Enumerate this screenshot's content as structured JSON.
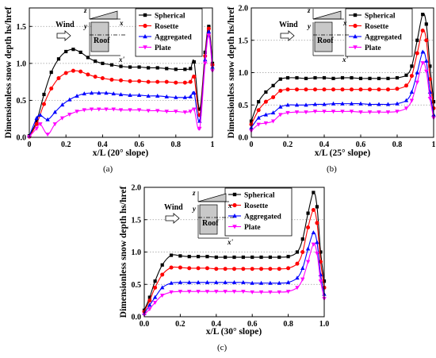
{
  "chart_data": [
    {
      "type": "line",
      "panel_label": "(a)",
      "xlabel": "x/L (20° slope)",
      "ylabel": "Dimensionless snow depth hs/href",
      "xlim": [
        0,
        1
      ],
      "ylim": [
        0,
        1.75
      ],
      "xticks": [
        "0",
        "0.2",
        "0.4",
        "0.6",
        "0.8",
        "1"
      ],
      "yticks": [
        "0.0",
        "0.5",
        "1.0",
        "1.5"
      ],
      "grid": "horizontal dotted at major y ticks",
      "legend_position": "top-right",
      "series": [
        {
          "name": "Spherical",
          "color": "#000000",
          "marker": "square",
          "x": [
            0.0,
            0.04,
            0.08,
            0.12,
            0.16,
            0.2,
            0.24,
            0.28,
            0.32,
            0.36,
            0.4,
            0.45,
            0.5,
            0.55,
            0.6,
            0.65,
            0.7,
            0.75,
            0.8,
            0.85,
            0.88,
            0.9,
            0.93,
            0.96,
            0.98,
            1.0
          ],
          "y": [
            0.02,
            0.22,
            0.58,
            0.88,
            1.06,
            1.16,
            1.19,
            1.15,
            1.08,
            1.03,
            1.0,
            0.98,
            0.96,
            0.95,
            0.95,
            0.94,
            0.94,
            0.93,
            0.92,
            0.92,
            0.93,
            1.02,
            0.38,
            1.15,
            1.5,
            1.0
          ]
        },
        {
          "name": "Rosette",
          "color": "#ff0000",
          "marker": "circle",
          "x": [
            0.0,
            0.04,
            0.08,
            0.12,
            0.16,
            0.2,
            0.24,
            0.28,
            0.32,
            0.36,
            0.4,
            0.45,
            0.5,
            0.55,
            0.6,
            0.65,
            0.7,
            0.75,
            0.8,
            0.85,
            0.88,
            0.9,
            0.93,
            0.96,
            0.98,
            1.0
          ],
          "y": [
            0.01,
            0.18,
            0.45,
            0.66,
            0.8,
            0.87,
            0.9,
            0.89,
            0.85,
            0.82,
            0.8,
            0.78,
            0.77,
            0.76,
            0.76,
            0.75,
            0.75,
            0.75,
            0.74,
            0.74,
            0.75,
            0.82,
            0.3,
            1.1,
            1.47,
            0.98
          ]
        },
        {
          "name": "Aggregated",
          "color": "#0000ff",
          "marker": "triangle-up",
          "x": [
            0.0,
            0.04,
            0.06,
            0.1,
            0.14,
            0.18,
            0.22,
            0.26,
            0.3,
            0.34,
            0.38,
            0.42,
            0.46,
            0.5,
            0.55,
            0.6,
            0.65,
            0.7,
            0.75,
            0.8,
            0.85,
            0.88,
            0.9,
            0.93,
            0.96,
            0.98,
            1.0
          ],
          "y": [
            0.02,
            0.26,
            0.3,
            0.24,
            0.34,
            0.44,
            0.51,
            0.56,
            0.59,
            0.6,
            0.6,
            0.6,
            0.59,
            0.58,
            0.57,
            0.57,
            0.56,
            0.56,
            0.55,
            0.54,
            0.54,
            0.55,
            0.6,
            0.22,
            1.05,
            1.43,
            0.95
          ]
        },
        {
          "name": "Plate",
          "color": "#ff00ff",
          "marker": "triangle-down",
          "x": [
            0.0,
            0.04,
            0.06,
            0.1,
            0.14,
            0.18,
            0.22,
            0.26,
            0.3,
            0.34,
            0.38,
            0.42,
            0.46,
            0.5,
            0.55,
            0.6,
            0.65,
            0.7,
            0.75,
            0.8,
            0.85,
            0.88,
            0.9,
            0.93,
            0.96,
            0.98,
            1.0
          ],
          "y": [
            0.01,
            0.12,
            0.18,
            0.04,
            0.18,
            0.26,
            0.31,
            0.35,
            0.37,
            0.38,
            0.38,
            0.38,
            0.38,
            0.37,
            0.37,
            0.37,
            0.36,
            0.36,
            0.35,
            0.35,
            0.34,
            0.35,
            0.38,
            0.12,
            1.0,
            1.38,
            0.9
          ]
        }
      ]
    },
    {
      "type": "line",
      "panel_label": "(b)",
      "xlabel": "x/L (25° slope)",
      "ylabel": "Dimensionless snow depth hs/href",
      "xlim": [
        0,
        1
      ],
      "ylim": [
        0,
        2.0
      ],
      "xticks": [
        "0",
        "0.2",
        "0.4",
        "0.6",
        "0.8",
        "1"
      ],
      "yticks": [
        "0.0",
        "0.5",
        "1.0",
        "1.5",
        "2.0"
      ],
      "grid": "horizontal dotted at major y ticks",
      "legend_position": "top-right",
      "series": [
        {
          "name": "Spherical",
          "color": "#000000",
          "marker": "square",
          "x": [
            0.0,
            0.04,
            0.08,
            0.12,
            0.16,
            0.2,
            0.25,
            0.3,
            0.35,
            0.4,
            0.45,
            0.5,
            0.55,
            0.6,
            0.65,
            0.7,
            0.75,
            0.8,
            0.85,
            0.88,
            0.91,
            0.94,
            0.96,
            0.98,
            1.0
          ],
          "y": [
            0.25,
            0.55,
            0.7,
            0.8,
            0.9,
            0.92,
            0.92,
            0.91,
            0.92,
            0.92,
            0.91,
            0.92,
            0.92,
            0.91,
            0.91,
            0.91,
            0.91,
            0.92,
            0.96,
            1.1,
            1.5,
            1.9,
            1.75,
            1.1,
            0.55
          ]
        },
        {
          "name": "Rosette",
          "color": "#ff0000",
          "marker": "circle",
          "x": [
            0.0,
            0.04,
            0.08,
            0.12,
            0.16,
            0.2,
            0.25,
            0.3,
            0.35,
            0.4,
            0.45,
            0.5,
            0.55,
            0.6,
            0.65,
            0.7,
            0.75,
            0.8,
            0.85,
            0.88,
            0.91,
            0.94,
            0.96,
            0.98,
            1.0
          ],
          "y": [
            0.2,
            0.42,
            0.55,
            0.62,
            0.72,
            0.74,
            0.74,
            0.74,
            0.74,
            0.74,
            0.74,
            0.74,
            0.74,
            0.74,
            0.74,
            0.74,
            0.74,
            0.75,
            0.8,
            0.95,
            1.3,
            1.65,
            1.5,
            0.9,
            0.45
          ]
        },
        {
          "name": "Aggregated",
          "color": "#0000ff",
          "marker": "triangle-up",
          "x": [
            0.0,
            0.04,
            0.08,
            0.12,
            0.16,
            0.2,
            0.25,
            0.3,
            0.35,
            0.4,
            0.45,
            0.5,
            0.55,
            0.6,
            0.65,
            0.7,
            0.75,
            0.8,
            0.85,
            0.88,
            0.91,
            0.94,
            0.96,
            0.98,
            1.0
          ],
          "y": [
            0.15,
            0.3,
            0.35,
            0.38,
            0.47,
            0.5,
            0.5,
            0.5,
            0.51,
            0.51,
            0.52,
            0.52,
            0.52,
            0.52,
            0.51,
            0.51,
            0.51,
            0.52,
            0.57,
            0.7,
            1.0,
            1.32,
            1.18,
            0.7,
            0.35
          ]
        },
        {
          "name": "Plate",
          "color": "#ff00ff",
          "marker": "triangle-down",
          "x": [
            0.0,
            0.04,
            0.08,
            0.12,
            0.16,
            0.2,
            0.25,
            0.3,
            0.35,
            0.4,
            0.45,
            0.5,
            0.55,
            0.6,
            0.65,
            0.7,
            0.75,
            0.8,
            0.85,
            0.88,
            0.91,
            0.94,
            0.96,
            0.98,
            1.0
          ],
          "y": [
            0.1,
            0.2,
            0.22,
            0.25,
            0.35,
            0.38,
            0.39,
            0.39,
            0.4,
            0.4,
            0.4,
            0.4,
            0.4,
            0.39,
            0.39,
            0.39,
            0.39,
            0.4,
            0.45,
            0.57,
            0.85,
            1.15,
            1.02,
            0.6,
            0.3
          ]
        }
      ]
    },
    {
      "type": "line",
      "panel_label": "(c)",
      "xlabel": "x/L (30° slope)",
      "ylabel": "Dimensionless snow depth hs/href",
      "xlim": [
        0,
        1
      ],
      "ylim": [
        0,
        2.0
      ],
      "xticks": [
        "0.0",
        "0.2",
        "0.4",
        "0.6",
        "0.8",
        "1.0"
      ],
      "yticks": [
        "0.0",
        "0.5",
        "1.0",
        "1.5",
        "2.0"
      ],
      "grid": "horizontal dotted at major y ticks",
      "legend_position": "top-right",
      "series": [
        {
          "name": "Spherical",
          "color": "#000000",
          "marker": "square",
          "x": [
            0.0,
            0.03,
            0.06,
            0.1,
            0.15,
            0.2,
            0.25,
            0.3,
            0.35,
            0.4,
            0.45,
            0.5,
            0.55,
            0.6,
            0.65,
            0.7,
            0.75,
            0.8,
            0.85,
            0.88,
            0.91,
            0.94,
            0.96,
            0.98,
            1.0
          ],
          "y": [
            0.1,
            0.3,
            0.55,
            0.8,
            0.95,
            0.94,
            0.93,
            0.93,
            0.93,
            0.92,
            0.92,
            0.92,
            0.92,
            0.92,
            0.92,
            0.92,
            0.92,
            0.93,
            1.0,
            1.2,
            1.6,
            1.92,
            1.7,
            1.0,
            0.55
          ]
        },
        {
          "name": "Rosette",
          "color": "#ff0000",
          "marker": "circle",
          "x": [
            0.0,
            0.03,
            0.06,
            0.1,
            0.15,
            0.2,
            0.25,
            0.3,
            0.35,
            0.4,
            0.45,
            0.5,
            0.55,
            0.6,
            0.65,
            0.7,
            0.75,
            0.8,
            0.85,
            0.88,
            0.91,
            0.94,
            0.96,
            0.98,
            1.0
          ],
          "y": [
            0.08,
            0.25,
            0.45,
            0.65,
            0.76,
            0.76,
            0.75,
            0.75,
            0.75,
            0.74,
            0.74,
            0.74,
            0.74,
            0.74,
            0.74,
            0.74,
            0.74,
            0.75,
            0.82,
            1.0,
            1.38,
            1.65,
            1.45,
            0.85,
            0.45
          ]
        },
        {
          "name": "Aggregated",
          "color": "#0000ff",
          "marker": "triangle-up",
          "x": [
            0.0,
            0.03,
            0.06,
            0.1,
            0.15,
            0.2,
            0.25,
            0.3,
            0.35,
            0.4,
            0.45,
            0.5,
            0.55,
            0.6,
            0.65,
            0.7,
            0.75,
            0.8,
            0.85,
            0.88,
            0.91,
            0.94,
            0.96,
            0.98,
            1.0
          ],
          "y": [
            0.05,
            0.18,
            0.3,
            0.45,
            0.52,
            0.53,
            0.53,
            0.53,
            0.53,
            0.53,
            0.53,
            0.53,
            0.53,
            0.52,
            0.52,
            0.52,
            0.52,
            0.53,
            0.6,
            0.75,
            1.05,
            1.3,
            1.15,
            0.65,
            0.35
          ]
        },
        {
          "name": "Plate",
          "color": "#ff00ff",
          "marker": "triangle-down",
          "x": [
            0.0,
            0.03,
            0.06,
            0.1,
            0.15,
            0.2,
            0.25,
            0.3,
            0.35,
            0.4,
            0.45,
            0.5,
            0.55,
            0.6,
            0.65,
            0.7,
            0.75,
            0.8,
            0.85,
            0.88,
            0.91,
            0.94,
            0.96,
            0.98,
            1.0
          ],
          "y": [
            0.03,
            0.12,
            0.22,
            0.33,
            0.38,
            0.39,
            0.39,
            0.39,
            0.39,
            0.39,
            0.39,
            0.39,
            0.39,
            0.38,
            0.38,
            0.38,
            0.38,
            0.39,
            0.45,
            0.58,
            0.85,
            1.12,
            0.98,
            0.55,
            0.28
          ]
        }
      ]
    }
  ],
  "inset": {
    "wind_label": "Wind",
    "roof_label": "Roof",
    "axis_z": "z",
    "axis_y": "y",
    "axis_x_top": "x",
    "axis_x_bottom": "x'"
  }
}
